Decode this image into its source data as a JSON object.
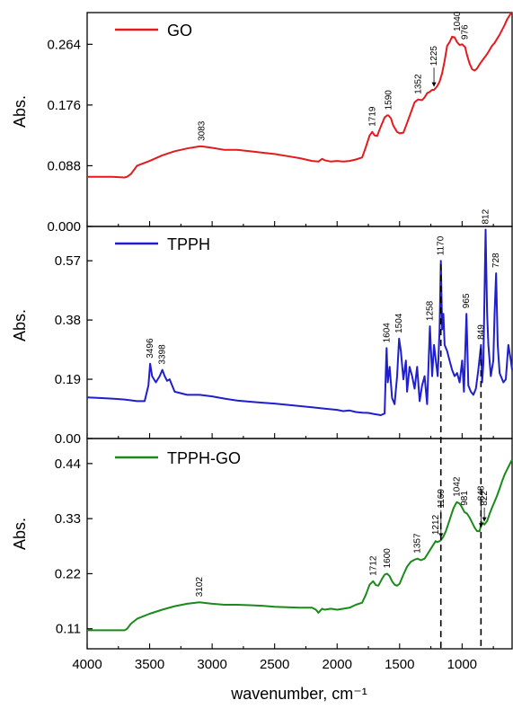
{
  "chart_data": [
    {
      "type": "line",
      "panel": "GO",
      "ylabel": "Abs.",
      "ylim": [
        0,
        0.31
      ],
      "yticks": [
        "0.000",
        "0.088",
        "0.176",
        "0.264"
      ],
      "yticks_values": [
        0,
        0.088,
        0.176,
        0.264
      ],
      "xlim": [
        4000,
        600
      ],
      "color": "#e41a1c",
      "legend": "GO",
      "series": [
        {
          "x": [
            4000,
            3900,
            3800,
            3700,
            3680,
            3650,
            3600,
            3500,
            3400,
            3300,
            3200,
            3100,
            3083,
            3000,
            2900,
            2800,
            2700,
            2600,
            2500,
            2400,
            2300,
            2200,
            2150,
            2120,
            2100,
            2050,
            2000,
            1950,
            1900,
            1850,
            1800,
            1770,
            1740,
            1719,
            1700,
            1680,
            1650,
            1620,
            1600,
            1590,
            1570,
            1550,
            1520,
            1500,
            1470,
            1440,
            1400,
            1380,
            1352,
            1320,
            1300,
            1280,
            1260,
            1240,
            1225,
            1200,
            1180,
            1160,
            1140,
            1120,
            1100,
            1080,
            1060,
            1040,
            1020,
            1000,
            976,
            960,
            940,
            920,
            900,
            880,
            860,
            840,
            820,
            800,
            780,
            760,
            740,
            720,
            700,
            680,
            660,
            640,
            620,
            600
          ],
          "y": [
            0.072,
            0.072,
            0.072,
            0.071,
            0.072,
            0.076,
            0.088,
            0.095,
            0.103,
            0.109,
            0.113,
            0.116,
            0.116,
            0.114,
            0.111,
            0.111,
            0.109,
            0.107,
            0.105,
            0.102,
            0.099,
            0.095,
            0.094,
            0.098,
            0.096,
            0.094,
            0.095,
            0.094,
            0.095,
            0.097,
            0.1,
            0.115,
            0.132,
            0.137,
            0.132,
            0.131,
            0.145,
            0.158,
            0.161,
            0.161,
            0.157,
            0.146,
            0.137,
            0.135,
            0.136,
            0.15,
            0.17,
            0.18,
            0.184,
            0.183,
            0.187,
            0.193,
            0.195,
            0.198,
            0.198,
            0.203,
            0.21,
            0.222,
            0.24,
            0.262,
            0.267,
            0.275,
            0.274,
            0.267,
            0.263,
            0.264,
            0.26,
            0.248,
            0.236,
            0.228,
            0.226,
            0.229,
            0.235,
            0.24,
            0.245,
            0.25,
            0.256,
            0.262,
            0.266,
            0.272,
            0.278,
            0.285,
            0.292,
            0.3,
            0.306,
            0.311
          ]
        }
      ],
      "annotations": [
        {
          "text": "3083",
          "x": 3083,
          "y": 0.116
        },
        {
          "text": "1719",
          "x": 1719,
          "y": 0.137
        },
        {
          "text": "1590",
          "x": 1590,
          "y": 0.161
        },
        {
          "text": "1352",
          "x": 1352,
          "y": 0.184
        },
        {
          "text": "1225",
          "x": 1225,
          "y": 0.225,
          "arrow_to_y": 0.201
        },
        {
          "text": "1040",
          "x": 1040,
          "y": 0.275
        },
        {
          "text": "976",
          "x": 976,
          "y": 0.263
        }
      ]
    },
    {
      "type": "line",
      "panel": "TPPH",
      "ylabel": "Abs.",
      "ylim": [
        0,
        0.68
      ],
      "yticks": [
        "0.00",
        "0.19",
        "0.38",
        "0.57"
      ],
      "yticks_values": [
        0,
        0.19,
        0.38,
        0.57
      ],
      "xlim": [
        4000,
        600
      ],
      "color": "#1f1fcf",
      "legend": "TPPH",
      "series": [
        {
          "x": [
            4000,
            3900,
            3800,
            3700,
            3600,
            3540,
            3510,
            3496,
            3480,
            3450,
            3420,
            3398,
            3380,
            3360,
            3340,
            3320,
            3300,
            3200,
            3100,
            3000,
            2900,
            2800,
            2700,
            2600,
            2500,
            2400,
            2300,
            2200,
            2100,
            2000,
            1950,
            1900,
            1850,
            1800,
            1750,
            1700,
            1650,
            1620,
            1610,
            1604,
            1595,
            1580,
            1560,
            1540,
            1520,
            1504,
            1490,
            1470,
            1450,
            1440,
            1420,
            1400,
            1380,
            1360,
            1340,
            1320,
            1300,
            1280,
            1258,
            1240,
            1225,
            1210,
            1195,
            1180,
            1170,
            1160,
            1150,
            1140,
            1120,
            1100,
            1080,
            1060,
            1040,
            1020,
            1000,
            985,
            965,
            950,
            930,
            910,
            890,
            870,
            849,
            840,
            830,
            812,
            800,
            790,
            770,
            750,
            740,
            728,
            715,
            700,
            690,
            670,
            650,
            630,
            610,
            600
          ],
          "y": [
            0.132,
            0.13,
            0.128,
            0.125,
            0.12,
            0.12,
            0.17,
            0.24,
            0.2,
            0.18,
            0.2,
            0.22,
            0.2,
            0.185,
            0.19,
            0.17,
            0.15,
            0.14,
            0.14,
            0.135,
            0.128,
            0.122,
            0.118,
            0.115,
            0.112,
            0.108,
            0.104,
            0.1,
            0.096,
            0.092,
            0.088,
            0.09,
            0.085,
            0.083,
            0.082,
            0.078,
            0.075,
            0.08,
            0.22,
            0.29,
            0.18,
            0.23,
            0.13,
            0.11,
            0.2,
            0.32,
            0.28,
            0.19,
            0.25,
            0.15,
            0.23,
            0.2,
            0.16,
            0.23,
            0.12,
            0.17,
            0.2,
            0.11,
            0.36,
            0.2,
            0.3,
            0.25,
            0.2,
            0.35,
            0.57,
            0.35,
            0.4,
            0.3,
            0.28,
            0.25,
            0.22,
            0.2,
            0.21,
            0.18,
            0.25,
            0.15,
            0.4,
            0.17,
            0.15,
            0.14,
            0.16,
            0.22,
            0.3,
            0.18,
            0.24,
            0.67,
            0.4,
            0.3,
            0.2,
            0.25,
            0.4,
            0.53,
            0.3,
            0.21,
            0.2,
            0.18,
            0.19,
            0.3,
            0.25,
            0.22
          ]
        }
      ],
      "annotations": [
        {
          "text": "3496",
          "x": 3496,
          "y": 0.24
        },
        {
          "text": "3398",
          "x": 3398,
          "y": 0.22
        },
        {
          "text": "1604",
          "x": 1604,
          "y": 0.29
        },
        {
          "text": "1504",
          "x": 1504,
          "y": 0.32
        },
        {
          "text": "1258",
          "x": 1258,
          "y": 0.36
        },
        {
          "text": "1170",
          "x": 1170,
          "y": 0.57
        },
        {
          "text": "965",
          "x": 965,
          "y": 0.4
        },
        {
          "text": "849",
          "x": 849,
          "y": 0.3
        },
        {
          "text": "812",
          "x": 812,
          "y": 0.67
        },
        {
          "text": "728",
          "x": 728,
          "y": 0.53
        }
      ]
    },
    {
      "type": "line",
      "panel": "TPPH-GO",
      "xlabel": "wavenumber, cm⁻¹",
      "ylabel": "Abs.",
      "ylim": [
        0.07,
        0.49
      ],
      "yticks": [
        "0.11",
        "0.22",
        "0.33",
        "0.44"
      ],
      "yticks_values": [
        0.11,
        0.22,
        0.33,
        0.44
      ],
      "xlim": [
        4000,
        600
      ],
      "xticks": [
        4000,
        3500,
        3000,
        2500,
        2000,
        1500,
        1000
      ],
      "xtick_labels": [
        "4000",
        "3500",
        "3000",
        "2500",
        "2000",
        "1500",
        "1000"
      ],
      "color": "#1a8a1a",
      "legend": "TPPH-GO",
      "series": [
        {
          "x": [
            4000,
            3900,
            3800,
            3700,
            3680,
            3650,
            3600,
            3500,
            3400,
            3300,
            3200,
            3102,
            3000,
            2900,
            2800,
            2700,
            2600,
            2500,
            2400,
            2300,
            2200,
            2170,
            2150,
            2120,
            2100,
            2050,
            2000,
            1950,
            1900,
            1850,
            1800,
            1770,
            1740,
            1712,
            1690,
            1670,
            1640,
            1620,
            1600,
            1580,
            1560,
            1540,
            1520,
            1500,
            1470,
            1440,
            1410,
            1380,
            1357,
            1330,
            1300,
            1280,
            1260,
            1240,
            1212,
            1200,
            1180,
            1169,
            1150,
            1130,
            1110,
            1090,
            1070,
            1050,
            1042,
            1020,
            1000,
            981,
            960,
            940,
            920,
            900,
            880,
            860,
            848,
            835,
            822,
            800,
            780,
            760,
            740,
            720,
            700,
            680,
            660,
            640,
            620,
            600
          ],
          "y": [
            0.107,
            0.107,
            0.107,
            0.107,
            0.11,
            0.12,
            0.13,
            0.14,
            0.148,
            0.155,
            0.16,
            0.163,
            0.16,
            0.158,
            0.158,
            0.157,
            0.156,
            0.154,
            0.153,
            0.152,
            0.152,
            0.148,
            0.142,
            0.15,
            0.148,
            0.15,
            0.148,
            0.15,
            0.152,
            0.158,
            0.162,
            0.178,
            0.198,
            0.205,
            0.197,
            0.196,
            0.21,
            0.218,
            0.22,
            0.215,
            0.205,
            0.198,
            0.196,
            0.2,
            0.218,
            0.234,
            0.244,
            0.248,
            0.25,
            0.247,
            0.25,
            0.258,
            0.266,
            0.274,
            0.285,
            0.283,
            0.285,
            0.287,
            0.294,
            0.305,
            0.32,
            0.335,
            0.35,
            0.36,
            0.363,
            0.36,
            0.352,
            0.343,
            0.34,
            0.332,
            0.322,
            0.312,
            0.305,
            0.305,
            0.318,
            0.322,
            0.318,
            0.325,
            0.34,
            0.352,
            0.364,
            0.376,
            0.39,
            0.405,
            0.418,
            0.428,
            0.438,
            0.448
          ]
        }
      ],
      "annotations": [
        {
          "text": "3102",
          "x": 3102,
          "y": 0.163
        },
        {
          "text": "1712",
          "x": 1712,
          "y": 0.205
        },
        {
          "text": "1600",
          "x": 1600,
          "y": 0.22
        },
        {
          "text": "1357",
          "x": 1357,
          "y": 0.25
        },
        {
          "text": "1212",
          "x": 1212,
          "y": 0.287
        },
        {
          "text": "1169",
          "x": 1169,
          "y": 0.34,
          "arrow_to_y": 0.29
        },
        {
          "text": "1042",
          "x": 1042,
          "y": 0.363
        },
        {
          "text": "981",
          "x": 981,
          "y": 0.345
        },
        {
          "text": "848",
          "x": 848,
          "y": 0.355,
          "arrow_to_y": 0.31
        },
        {
          "text": "822",
          "x": 822,
          "y": 0.345,
          "arrow_to_y": 0.322
        }
      ]
    }
  ],
  "guides": [
    1170,
    849
  ]
}
